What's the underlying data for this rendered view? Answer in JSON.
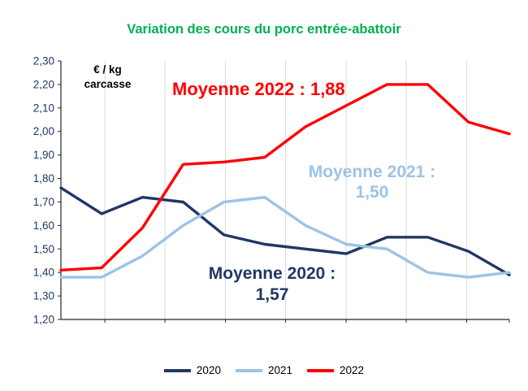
{
  "title": "Variation des cours du porc entrée-abattoir",
  "colors": {
    "title": "#00B050",
    "navy": "#1F3864",
    "light_blue": "#9DC3E6",
    "red": "#FF0000"
  },
  "axis_unit": {
    "line1": "€ / kg",
    "line2": "carcasse"
  },
  "annotations": {
    "y2022": {
      "text": "Moyenne 2022 : 1,88",
      "color": "#FF0000"
    },
    "y2021": {
      "line1": "Moyenne 2021 :",
      "line2": "1,50",
      "color": "#9DC3E6"
    },
    "y2020": {
      "line1": "Moyenne 2020 :",
      "line2": "1,57",
      "color": "#1F3864"
    }
  },
  "legend": [
    {
      "label": "2020",
      "color": "#1F3864"
    },
    {
      "label": "2021",
      "color": "#9DC3E6"
    },
    {
      "label": "2022",
      "color": "#FF0000"
    }
  ],
  "chart_data": {
    "type": "line",
    "title": "Variation des cours du porc entrée-abattoir",
    "ylabel": "€ / kg carcasse",
    "x_axis": "unlabeled, 12 points (months)",
    "x": [
      1,
      2,
      3,
      4,
      5,
      6,
      7,
      8,
      9,
      10,
      11,
      12
    ],
    "series": [
      {
        "name": "2020",
        "color": "#1F3864",
        "average": 1.57,
        "values": [
          1.76,
          1.65,
          1.72,
          1.7,
          1.56,
          1.52,
          1.5,
          1.48,
          1.55,
          1.55,
          1.49,
          1.39
        ]
      },
      {
        "name": "2021",
        "color": "#9DC3E6",
        "average": 1.5,
        "values": [
          1.38,
          1.38,
          1.47,
          1.6,
          1.7,
          1.72,
          1.6,
          1.52,
          1.5,
          1.4,
          1.38,
          1.4
        ]
      },
      {
        "name": "2022",
        "color": "#FF0000",
        "average": 1.88,
        "values": [
          1.41,
          1.42,
          1.59,
          1.86,
          1.87,
          1.89,
          2.02,
          2.11,
          2.2,
          2.2,
          2.04,
          1.99
        ]
      }
    ],
    "ylim": [
      1.2,
      2.3
    ],
    "y_ticks": [
      {
        "value": 2.3,
        "label": "2,30"
      },
      {
        "value": 2.2,
        "label": "2,20"
      },
      {
        "value": 2.1,
        "label": "2,10"
      },
      {
        "value": 2.0,
        "label": "2,00"
      },
      {
        "value": 1.9,
        "label": "1,90"
      },
      {
        "value": 1.8,
        "label": "1,80"
      },
      {
        "value": 1.7,
        "label": "1,70"
      },
      {
        "value": 1.6,
        "label": "1,60"
      },
      {
        "value": 1.5,
        "label": "1,50"
      },
      {
        "value": 1.4,
        "label": "1,40"
      },
      {
        "value": 1.3,
        "label": "1,30"
      },
      {
        "value": 1.2,
        "label": "1,20"
      }
    ],
    "grid": {
      "vertical": true,
      "horizontal": false,
      "color": "#D9D9D9"
    },
    "axis_color": "#262626",
    "tick_label_color": "#1F3864",
    "legend_position": "bottom"
  }
}
